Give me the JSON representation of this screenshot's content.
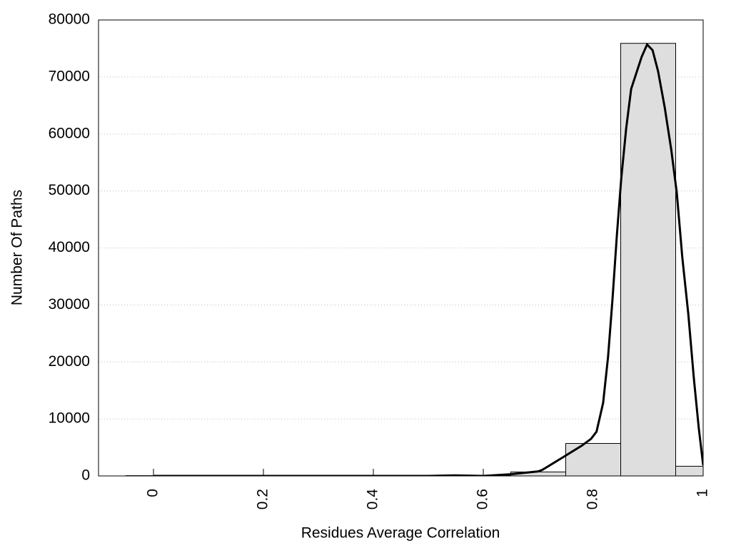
{
  "chart_data": {
    "type": "histogram",
    "xlabel": "Residues Average Correlation",
    "ylabel": "Number Of Paths",
    "bins": [
      -0.05,
      0.05,
      0.15,
      0.25,
      0.35,
      0.45,
      0.55,
      0.65,
      0.75,
      0.85,
      0.95,
      1.05
    ],
    "counts": [
      50,
      0,
      0,
      0,
      0,
      0,
      100,
      700,
      5700,
      75900,
      1700
    ],
    "color": "#dedede",
    "curve": {
      "color": "#000000",
      "x": [
        0,
        0.5,
        0.55,
        0.6,
        0.65,
        0.7,
        0.708,
        0.747,
        0.779,
        0.796,
        0.806,
        0.818,
        0.827,
        0.835,
        0.843,
        0.851,
        0.86,
        0.869,
        0.888,
        0.898,
        0.908,
        0.918,
        0.93,
        0.942,
        0.952,
        0.962,
        0.973,
        0.983,
        0.992,
        1.0
      ],
      "values": [
        0,
        0,
        100,
        0,
        300,
        800,
        1100,
        3400,
        5300,
        6500,
        7760,
        12800,
        20900,
        30900,
        42200,
        52200,
        61000,
        67900,
        73500,
        75700,
        74700,
        71000,
        64700,
        57200,
        49700,
        38400,
        28400,
        17200,
        8400,
        1900
      ]
    },
    "xlim": [
      -0.1,
      1
    ],
    "ylim": [
      0,
      80000
    ],
    "xticks": [
      0,
      0.2,
      0.4,
      0.6,
      0.8,
      1
    ],
    "yticks": [
      0,
      10000,
      20000,
      30000,
      40000,
      50000,
      60000,
      70000,
      80000
    ],
    "grid": true
  }
}
